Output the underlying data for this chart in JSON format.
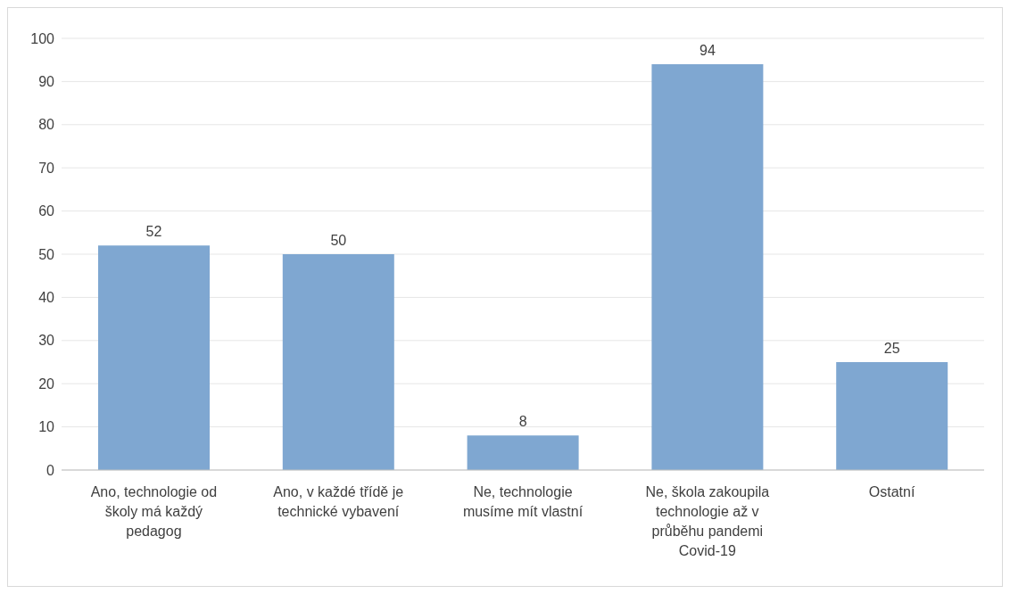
{
  "chart_data": {
    "type": "bar",
    "categories": [
      "Ano, technologie od školy má každý pedagog",
      "Ano, v každé třídě je technické vybavení",
      "Ne, technologie musíme mít vlastní",
      "Ne, škola zakoupila technologie až v průběhu pandemi Covid-19",
      "Ostatní"
    ],
    "values": [
      52,
      50,
      8,
      94,
      25
    ],
    "color": "#7fa7d1",
    "ylim": [
      0,
      100
    ],
    "yticks": [
      0,
      10,
      20,
      30,
      40,
      50,
      60,
      70,
      80,
      90,
      100
    ],
    "grid": "y",
    "data_labels": true
  }
}
